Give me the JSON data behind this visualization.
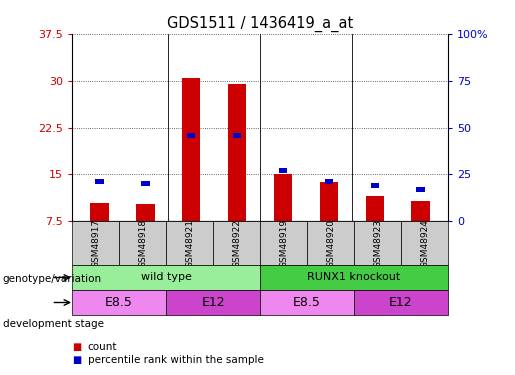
{
  "title": "GDS1511 / 1436419_a_at",
  "samples": [
    "GSM48917",
    "GSM48918",
    "GSM48921",
    "GSM48922",
    "GSM48919",
    "GSM48920",
    "GSM48923",
    "GSM48924"
  ],
  "count_values": [
    10.5,
    10.2,
    30.5,
    29.5,
    15.0,
    13.8,
    11.5,
    10.8
  ],
  "percentile_values": [
    21,
    20,
    46,
    46,
    27,
    21,
    19,
    17
  ],
  "ylim_left": [
    7.5,
    37.5
  ],
  "ylim_right": [
    0,
    100
  ],
  "yticks_left": [
    7.5,
    15,
    22.5,
    30,
    37.5
  ],
  "yticks_right": [
    0,
    25,
    50,
    75,
    100
  ],
  "ytick_labels_left": [
    "7.5",
    "15",
    "22.5",
    "30",
    "37.5"
  ],
  "ytick_labels_right": [
    "0",
    "25",
    "50",
    "75",
    "100%"
  ],
  "bar_color_red": "#cc0000",
  "bar_color_blue": "#0000cc",
  "bar_width": 0.4,
  "blue_bar_width": 0.18,
  "genotype_groups": [
    {
      "label": "wild type",
      "start": 0,
      "end": 4,
      "color": "#99ee99"
    },
    {
      "label": "RUNX1 knockout",
      "start": 4,
      "end": 8,
      "color": "#44cc44"
    }
  ],
  "development_groups": [
    {
      "label": "E8.5",
      "start": 0,
      "end": 2,
      "color": "#ee88ee"
    },
    {
      "label": "E12",
      "start": 2,
      "end": 4,
      "color": "#cc44cc"
    },
    {
      "label": "E8.5",
      "start": 4,
      "end": 6,
      "color": "#ee88ee"
    },
    {
      "label": "E12",
      "start": 6,
      "end": 8,
      "color": "#cc44cc"
    }
  ],
  "legend_count_label": "count",
  "legend_pct_label": "percentile rank within the sample",
  "left_axis_color": "#cc0000",
  "right_axis_color": "#0000cc",
  "grid_color": "#333333",
  "plot_bg": "#ffffff",
  "annotation_row1_label": "genotype/variation",
  "annotation_row2_label": "development stage",
  "sample_box_color": "#cccccc"
}
